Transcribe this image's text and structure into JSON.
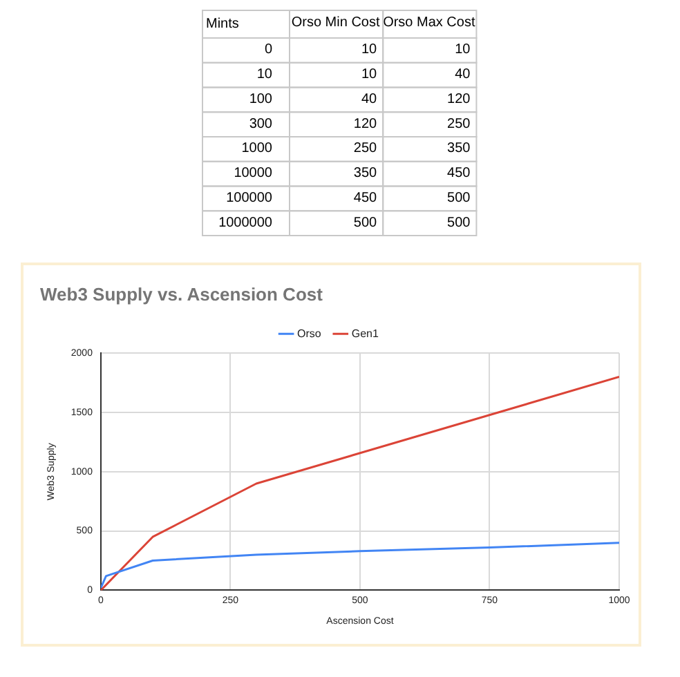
{
  "chart_data": [
    {
      "type": "heatmap",
      "ylabel": "Mints",
      "categories": [
        "Orso Min Cost",
        "Orso Max Cost"
      ],
      "y_categories": [
        "0",
        "10",
        "100",
        "300",
        "1000",
        "10000",
        "100000",
        "1000000"
      ],
      "cells": [
        [
          10,
          10
        ],
        [
          10,
          40
        ],
        [
          40,
          120
        ],
        [
          120,
          250
        ],
        [
          250,
          350
        ],
        [
          350,
          450
        ],
        [
          450,
          500
        ],
        [
          500,
          500
        ]
      ],
      "data_labels": true
    },
    {
      "type": "line",
      "title": "Web3 Supply vs. Ascension Cost",
      "xlabel": "Ascension Cost",
      "ylabel": "Web3 Supply",
      "xlim": [
        0,
        1000
      ],
      "xticks": [
        0,
        250,
        500,
        750,
        1000
      ],
      "ylim": [
        0,
        2000
      ],
      "yticks": [
        0,
        500,
        1000,
        1500,
        2000
      ],
      "grid": true,
      "legend": "top",
      "marker": "none",
      "line_style": "solid",
      "series": [
        {
          "name": "Orso",
          "color": "#4285f4",
          "x": [
            0,
            10,
            100,
            300,
            500,
            750,
            1000
          ],
          "values": [
            20,
            120,
            250,
            300,
            330,
            360,
            400
          ]
        },
        {
          "name": "Gen1",
          "color": "#db4437",
          "x": [
            0,
            100,
            300,
            1000
          ],
          "values": [
            0,
            450,
            900,
            1800
          ]
        }
      ]
    }
  ]
}
